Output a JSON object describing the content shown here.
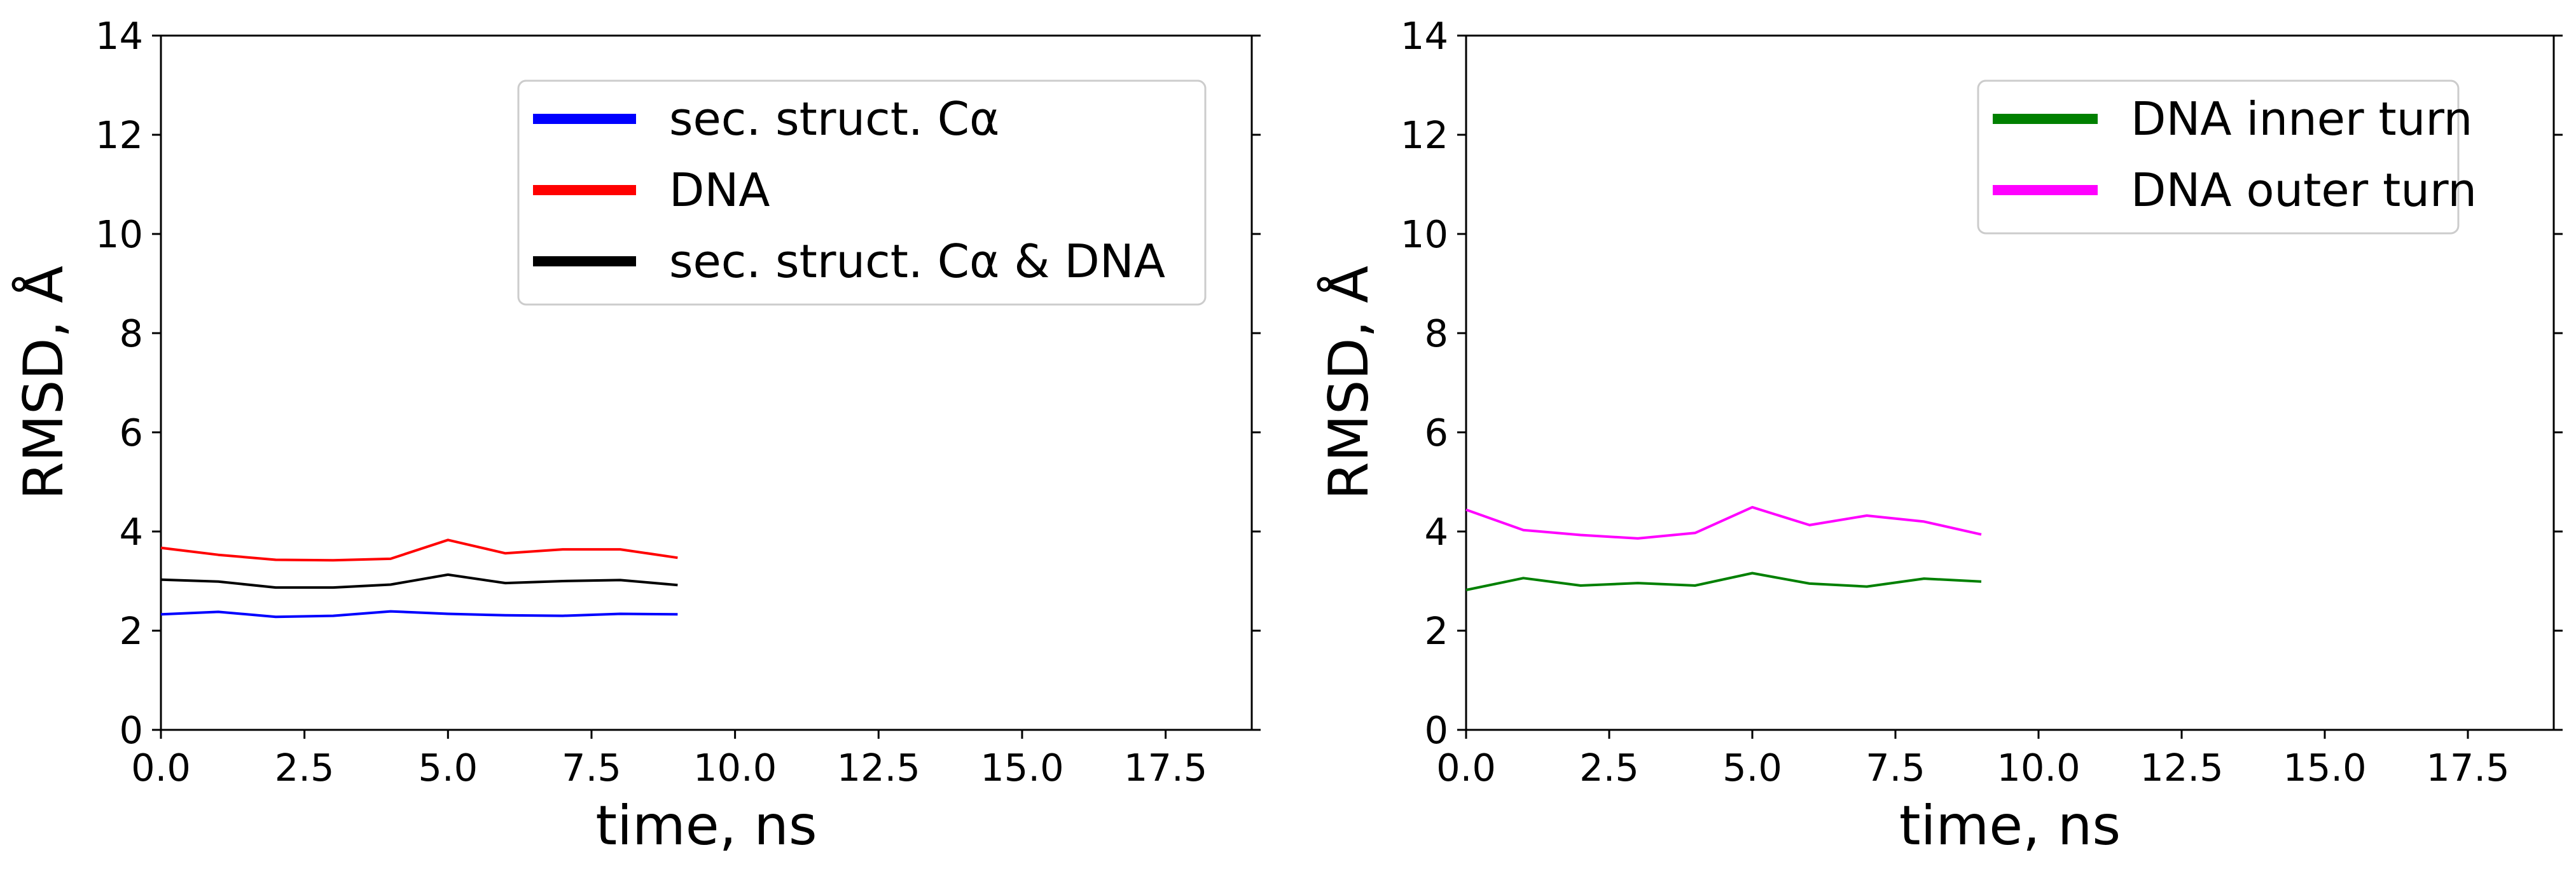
{
  "chart_data": [
    {
      "type": "line",
      "xlabel": "time, ns",
      "ylabel": "RMSD, Å",
      "xlim": [
        0,
        19
      ],
      "ylim": [
        0,
        14
      ],
      "xticks": [
        "0.0",
        "2.5",
        "5.0",
        "7.5",
        "10.0",
        "12.5",
        "15.0",
        "17.5"
      ],
      "xtick_values": [
        0,
        2.5,
        5,
        7.5,
        10,
        12.5,
        15,
        17.5
      ],
      "yticks": [
        "0",
        "2",
        "4",
        "6",
        "8",
        "10",
        "12",
        "14"
      ],
      "ytick_values": [
        0,
        2,
        4,
        6,
        8,
        10,
        12,
        14
      ],
      "grid": false,
      "legend_position": "top-right",
      "x": [
        0,
        1,
        2,
        3,
        4,
        5,
        6,
        7,
        8,
        9
      ],
      "series": [
        {
          "name": "sec. struct. Cα",
          "color": "#0000ff",
          "values": [
            2.33,
            2.38,
            2.28,
            2.3,
            2.39,
            2.34,
            2.31,
            2.3,
            2.34,
            2.33
          ]
        },
        {
          "name": "DNA",
          "color": "#ff0000",
          "values": [
            3.67,
            3.53,
            3.43,
            3.42,
            3.45,
            3.83,
            3.56,
            3.64,
            3.64,
            3.47
          ]
        },
        {
          "name": "sec. struct. Cα & DNA",
          "color": "#000000",
          "values": [
            3.03,
            2.99,
            2.87,
            2.87,
            2.93,
            3.13,
            2.96,
            3.0,
            3.02,
            2.92
          ]
        }
      ]
    },
    {
      "type": "line",
      "xlabel": "time, ns",
      "ylabel": "RMSD, Å",
      "xlim": [
        0,
        19
      ],
      "ylim": [
        0,
        14
      ],
      "xticks": [
        "0.0",
        "2.5",
        "5.0",
        "7.5",
        "10.0",
        "12.5",
        "15.0",
        "17.5"
      ],
      "xtick_values": [
        0,
        2.5,
        5,
        7.5,
        10,
        12.5,
        15,
        17.5
      ],
      "yticks": [
        "0",
        "2",
        "4",
        "6",
        "8",
        "10",
        "12",
        "14"
      ],
      "ytick_values": [
        0,
        2,
        4,
        6,
        8,
        10,
        12,
        14
      ],
      "grid": false,
      "legend_position": "top-right",
      "x": [
        0,
        1,
        2,
        3,
        4,
        5,
        6,
        7,
        8,
        9
      ],
      "series": [
        {
          "name": "DNA inner turn",
          "color": "#008000",
          "values": [
            2.82,
            3.06,
            2.91,
            2.96,
            2.91,
            3.16,
            2.95,
            2.89,
            3.05,
            2.99
          ]
        },
        {
          "name": "DNA outer turn",
          "color": "#ff00ff",
          "values": [
            4.44,
            4.03,
            3.93,
            3.86,
            3.97,
            4.49,
            4.13,
            4.32,
            4.2,
            3.94
          ]
        }
      ]
    }
  ]
}
